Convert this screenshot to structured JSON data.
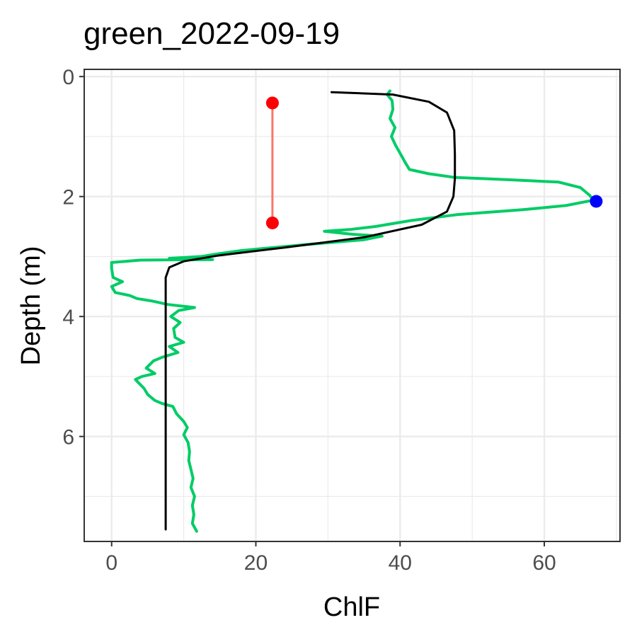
{
  "chart_data": {
    "type": "line",
    "title": "green_2022-09-19",
    "xlabel": "ChlF",
    "ylabel": "Depth (m)",
    "xlim": [
      -3.8,
      70.5
    ],
    "ylim": [
      7.75,
      -0.12
    ],
    "y_reversed": true,
    "grid": true,
    "legend": "none",
    "x_ticks": [
      0,
      20,
      40,
      60
    ],
    "x_tick_labels": [
      "0",
      "20",
      "40",
      "60"
    ],
    "y_ticks": [
      0,
      2,
      4,
      6
    ],
    "y_tick_labels": [
      "0",
      "2",
      "4",
      "6"
    ],
    "colors": {
      "profile": "#00CC66",
      "fit": "#000000",
      "layer": "#F8766D",
      "layer_points": "#FF0000",
      "peak": "#0000FF",
      "grid": "#EBEBEB",
      "panel_border": "#333333"
    },
    "series": [
      {
        "kind": "profile",
        "points": [
          [
            38.6,
            0.24
          ],
          [
            38.2,
            0.3
          ],
          [
            38.9,
            0.4
          ],
          [
            39.0,
            0.55
          ],
          [
            38.6,
            0.7
          ],
          [
            39.3,
            0.85
          ],
          [
            38.8,
            1.0
          ],
          [
            39.4,
            1.15
          ],
          [
            40.1,
            1.3
          ],
          [
            40.8,
            1.45
          ],
          [
            41.3,
            1.55
          ],
          [
            44.0,
            1.62
          ],
          [
            47.5,
            1.68
          ],
          [
            55.0,
            1.72
          ],
          [
            62.0,
            1.76
          ],
          [
            65.0,
            1.85
          ],
          [
            66.3,
            1.98
          ],
          [
            66.8,
            2.06
          ],
          [
            63.0,
            2.15
          ],
          [
            57.0,
            2.22
          ],
          [
            48.0,
            2.3
          ],
          [
            41.5,
            2.4
          ],
          [
            36.5,
            2.5
          ],
          [
            33.0,
            2.55
          ],
          [
            29.5,
            2.58
          ],
          [
            33.5,
            2.63
          ],
          [
            37.5,
            2.66
          ],
          [
            35.0,
            2.72
          ],
          [
            31.0,
            2.76
          ],
          [
            27.0,
            2.8
          ],
          [
            22.5,
            2.85
          ],
          [
            18.0,
            2.9
          ],
          [
            14.5,
            2.96
          ],
          [
            12.5,
            3.0
          ],
          [
            8.0,
            3.03
          ],
          [
            14.0,
            3.05
          ],
          [
            4.0,
            3.06
          ],
          [
            0.0,
            3.1
          ],
          [
            0.0,
            3.2
          ],
          [
            0.2,
            3.35
          ],
          [
            1.5,
            3.42
          ],
          [
            0.0,
            3.5
          ],
          [
            0.5,
            3.6
          ],
          [
            2.5,
            3.65
          ],
          [
            3.5,
            3.7
          ],
          [
            5.5,
            3.74
          ],
          [
            7.8,
            3.8
          ],
          [
            11.5,
            3.85
          ],
          [
            9.3,
            3.9
          ],
          [
            8.2,
            4.0
          ],
          [
            9.5,
            4.1
          ],
          [
            8.6,
            4.2
          ],
          [
            8.8,
            4.35
          ],
          [
            10.0,
            4.43
          ],
          [
            8.0,
            4.5
          ],
          [
            9.2,
            4.6
          ],
          [
            7.0,
            4.68
          ],
          [
            5.8,
            4.74
          ],
          [
            4.8,
            4.86
          ],
          [
            6.0,
            4.95
          ],
          [
            4.2,
            5.0
          ],
          [
            3.3,
            5.05
          ],
          [
            4.5,
            5.2
          ],
          [
            5.0,
            5.3
          ],
          [
            6.0,
            5.4
          ],
          [
            7.0,
            5.45
          ],
          [
            8.5,
            5.5
          ],
          [
            9.0,
            5.62
          ],
          [
            10.0,
            5.75
          ],
          [
            10.5,
            5.85
          ],
          [
            10.0,
            5.97
          ],
          [
            10.6,
            6.1
          ],
          [
            10.8,
            6.25
          ],
          [
            10.7,
            6.4
          ],
          [
            11.0,
            6.55
          ],
          [
            11.3,
            6.7
          ],
          [
            11.0,
            6.85
          ],
          [
            11.5,
            7.0
          ],
          [
            11.2,
            7.15
          ],
          [
            11.4,
            7.3
          ],
          [
            11.2,
            7.45
          ],
          [
            11.8,
            7.58
          ]
        ]
      },
      {
        "kind": "fit",
        "points": [
          [
            30.5,
            0.26
          ],
          [
            39.0,
            0.3
          ],
          [
            44.0,
            0.42
          ],
          [
            46.5,
            0.6
          ],
          [
            47.5,
            0.9
          ],
          [
            47.6,
            1.3
          ],
          [
            47.6,
            1.7
          ],
          [
            47.4,
            2.0
          ],
          [
            46.5,
            2.25
          ],
          [
            43.0,
            2.47
          ],
          [
            35.0,
            2.68
          ],
          [
            24.0,
            2.85
          ],
          [
            15.0,
            2.98
          ],
          [
            10.0,
            3.08
          ],
          [
            8.0,
            3.18
          ],
          [
            7.5,
            3.35
          ],
          [
            7.5,
            4.0
          ],
          [
            7.5,
            5.0
          ],
          [
            7.5,
            6.0
          ],
          [
            7.5,
            7.0
          ],
          [
            7.5,
            7.55
          ]
        ]
      },
      {
        "kind": "layer",
        "points": [
          [
            22.3,
            0.44
          ],
          [
            22.3,
            2.44
          ]
        ]
      },
      {
        "kind": "peak",
        "points": [
          [
            67.2,
            2.08
          ]
        ]
      }
    ]
  }
}
